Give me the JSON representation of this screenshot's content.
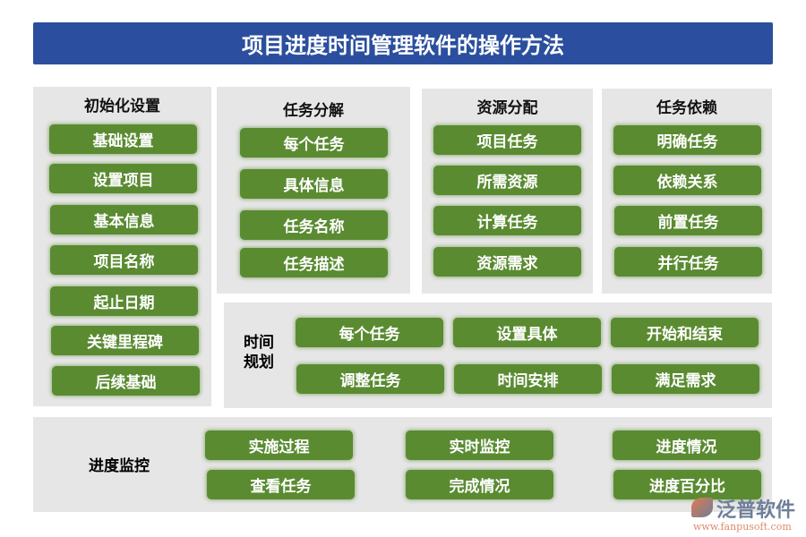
{
  "title": "项目进度时间管理软件的操作方法",
  "panels": {
    "init": {
      "title": "初始化设置",
      "items": [
        "基础设置",
        "设置项目",
        "基本信息",
        "项目名称",
        "起止日期",
        "关键里程碑",
        "后续基础"
      ]
    },
    "decompose": {
      "title": "任务分解",
      "items": [
        "每个任务",
        "具体信息",
        "任务名称",
        "任务描述"
      ]
    },
    "resource": {
      "title": "资源分配",
      "items": [
        "项目任务",
        "所需资源",
        "计算任务",
        "资源需求"
      ]
    },
    "dependency": {
      "title": "任务依赖",
      "items": [
        "明确任务",
        "依赖关系",
        "前置任务",
        "并行任务"
      ]
    },
    "time": {
      "title_line1": "时间",
      "title_line2": "规划",
      "items": [
        "每个任务",
        "设置具体",
        "开始和结束",
        "调整任务",
        "时间安排",
        "满足需求"
      ]
    },
    "monitor": {
      "title": "进度监控",
      "items": [
        "实施过程",
        "实时监控",
        "进度情况",
        "查看任务",
        "完成情况",
        "进度百分比"
      ]
    }
  },
  "logo": {
    "name": "泛普软件",
    "url": "www.fanpusoft.com"
  },
  "colors": {
    "title_bar": "#2b4f9e",
    "button": "#5a8b31",
    "panel": "#e6e6e6"
  }
}
